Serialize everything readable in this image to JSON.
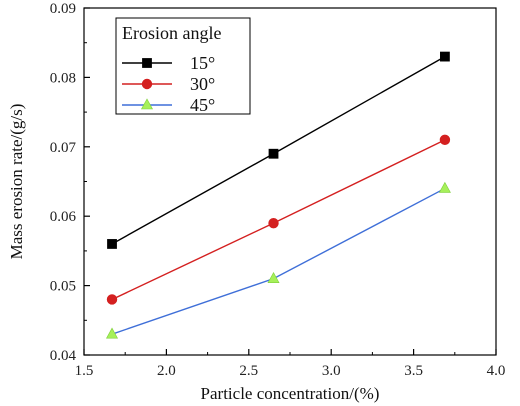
{
  "chart_data": {
    "type": "line",
    "xlabel": "Particle concentration/(%)",
    "ylabel": "Mass erosion rate/(g/s)",
    "xlim": [
      1.5,
      4.0
    ],
    "ylim": [
      0.04,
      0.09
    ],
    "xticks": [
      "1.5",
      "2.0",
      "2.5",
      "3.0",
      "3.5",
      "4.0"
    ],
    "yticks": [
      "0.04",
      "0.05",
      "0.06",
      "0.07",
      "0.08",
      "0.09"
    ],
    "grid": false,
    "legend": {
      "title": "Erosion angle",
      "placement": "top-left"
    },
    "x": [
      1.67,
      2.65,
      3.69
    ],
    "series": [
      {
        "name": "15°",
        "values": [
          0.056,
          0.069,
          0.083
        ],
        "color": "#000000",
        "marker": "square"
      },
      {
        "name": "30°",
        "values": [
          0.048,
          0.059,
          0.071
        ],
        "color": "#d42020",
        "marker": "circle"
      },
      {
        "name": "45°",
        "values": [
          0.043,
          0.051,
          0.064
        ],
        "color": "#3f6fd8",
        "marker": "triangle",
        "marker_color": "#a6f05a"
      }
    ]
  }
}
